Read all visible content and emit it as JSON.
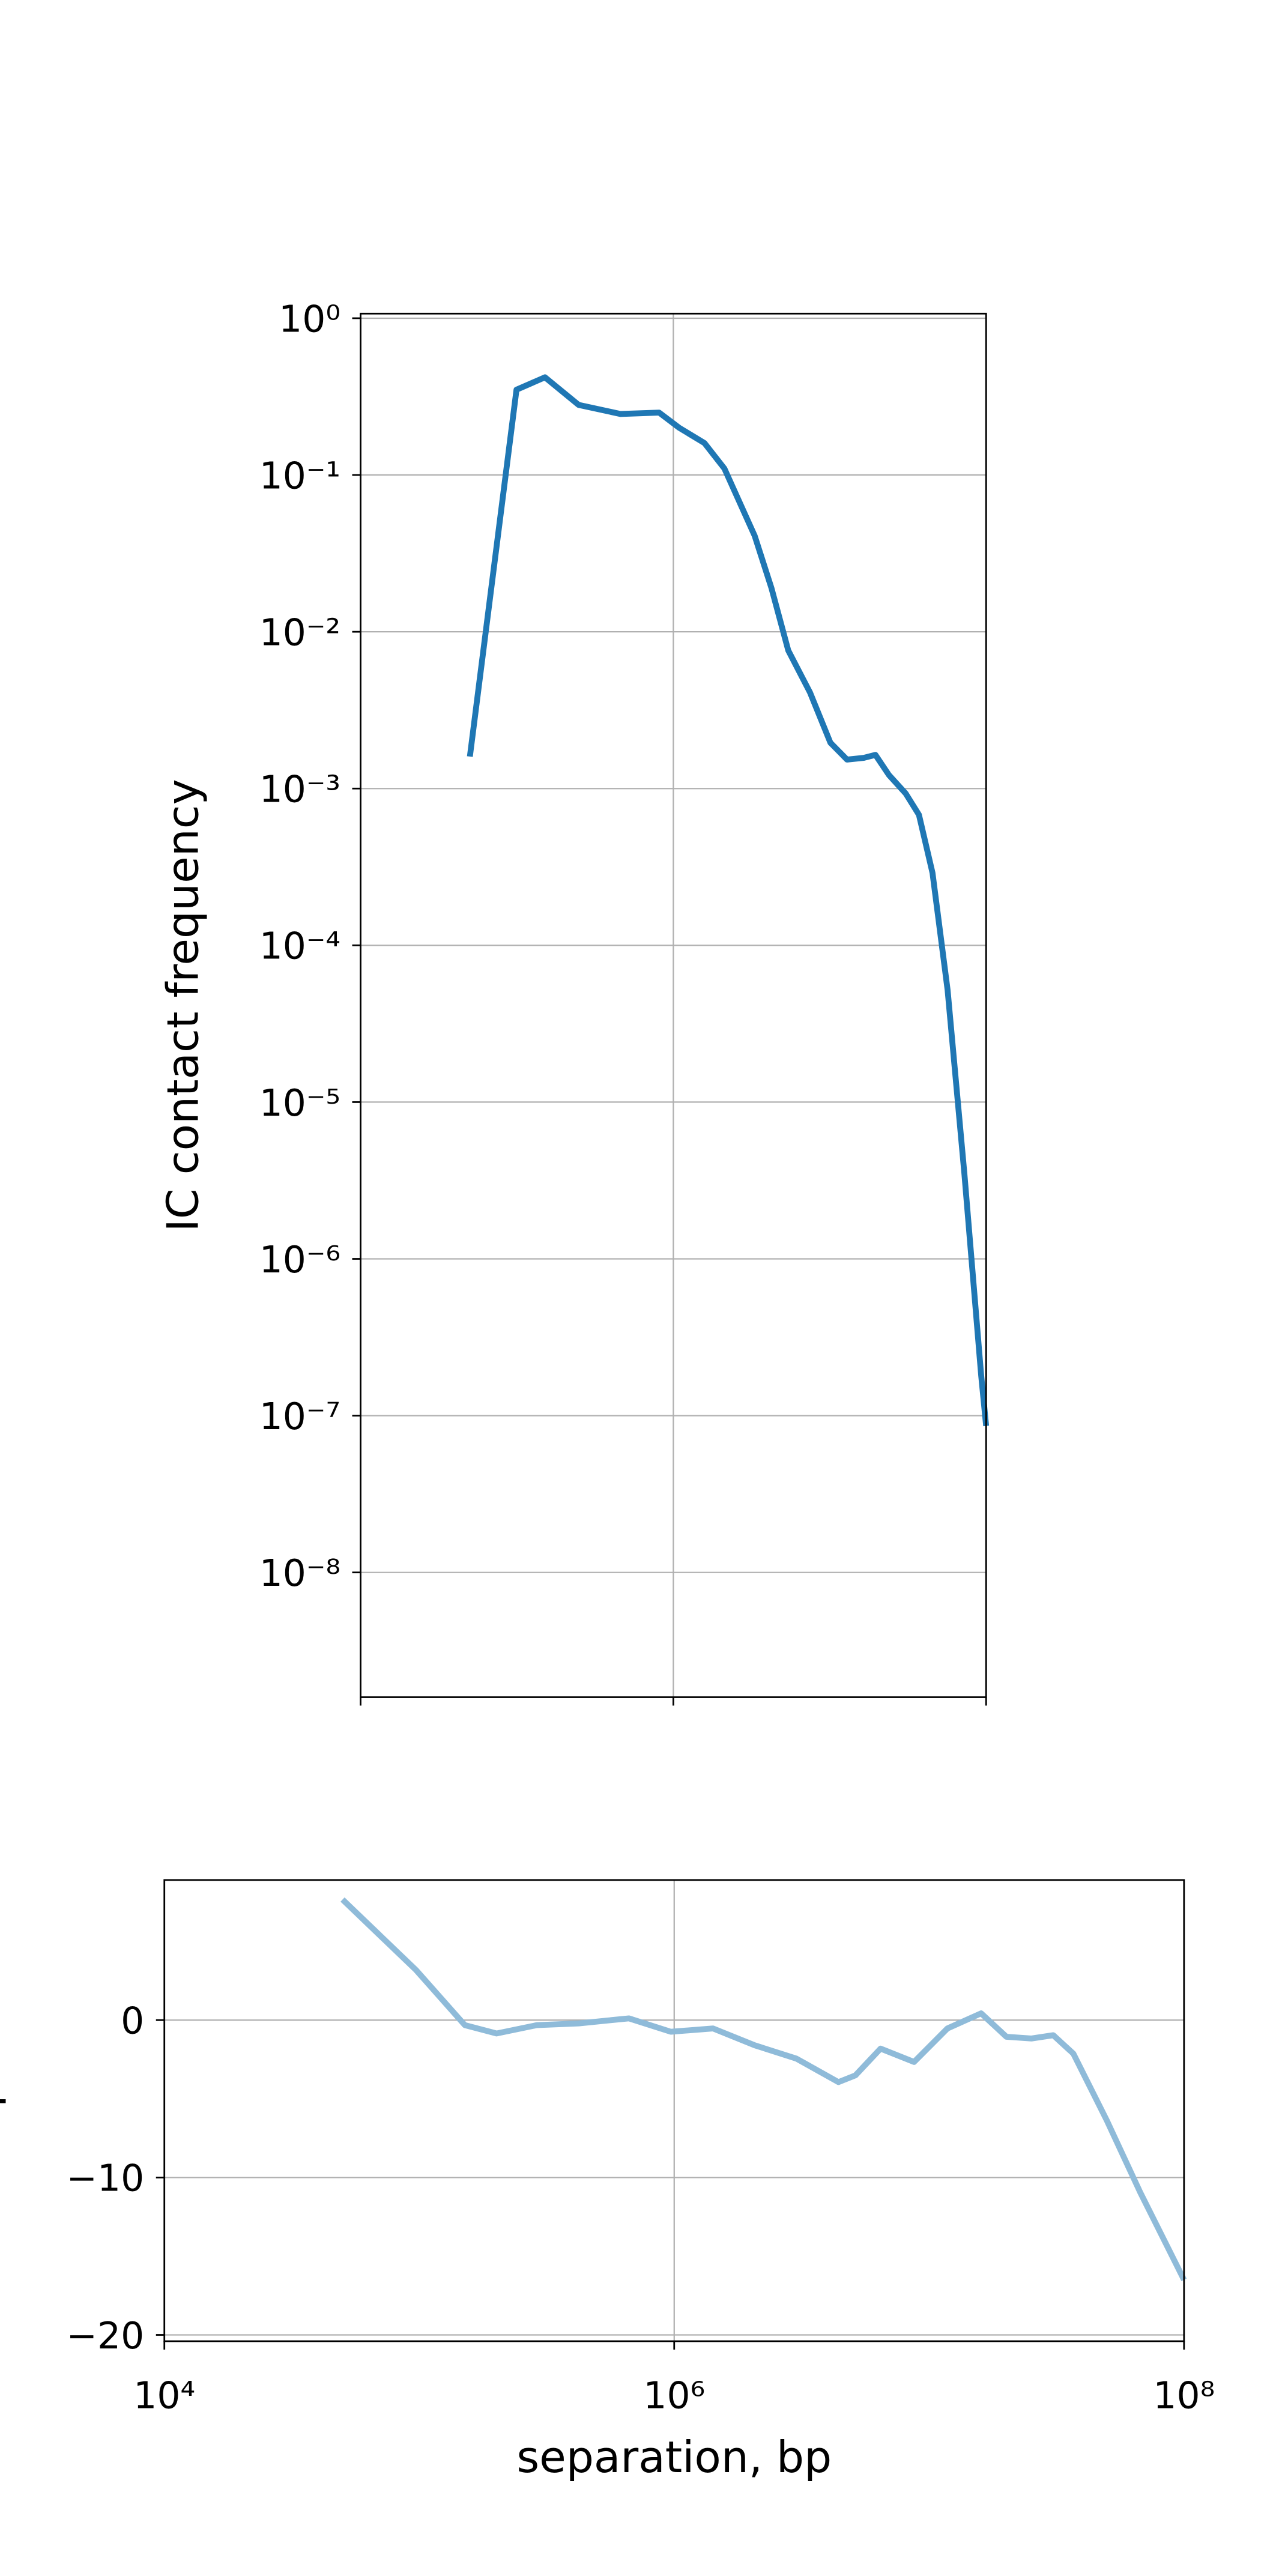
{
  "chart_data": [
    {
      "type": "line",
      "ylabel": "IC contact frequency",
      "xscale": "log",
      "yscale": "log",
      "grid": true,
      "xlim": [
        10000,
        100000000
      ],
      "xticks": [
        10000,
        1000000,
        100000000
      ],
      "ylim": [
        1.6e-09,
        1.07
      ],
      "yticks": [
        {
          "value": 1,
          "label": "10⁰"
        },
        {
          "value": 0.1,
          "label": "10⁻¹"
        },
        {
          "value": 0.01,
          "label": "10⁻²"
        },
        {
          "value": 0.001,
          "label": "10⁻³"
        },
        {
          "value": 0.0001,
          "label": "10⁻⁴"
        },
        {
          "value": 1e-05,
          "label": "10⁻⁵"
        },
        {
          "value": 1e-06,
          "label": "10⁻⁶"
        },
        {
          "value": 1e-07,
          "label": "10⁻⁷"
        },
        {
          "value": 1e-08,
          "label": "10⁻⁸"
        }
      ],
      "x": [
        50000,
        99300,
        151000,
        248000,
        459000,
        811000,
        1090000,
        1580000,
        2120000,
        3310000,
        4240000,
        5430000,
        7480000,
        10100000,
        12900000,
        16500000,
        19600000,
        23900000,
        30600000,
        37200000,
        45400000,
        56700000,
        72600000,
        93000000,
        100000000
      ],
      "series": [
        {
          "color": "#1f77b4",
          "values": [
            0.0016,
            0.35,
            0.42,
            0.28,
            0.245,
            0.25,
            0.2,
            0.16,
            0.11,
            0.041,
            0.019,
            0.0076,
            0.0041,
            0.00196,
            0.00153,
            0.00157,
            0.00164,
            0.00122,
            0.00093,
            0.00068,
            0.00029,
            5.2e-05,
            3.5e-06,
            1.8e-07,
            8.6e-08
          ]
        }
      ]
    },
    {
      "type": "line",
      "xlabel": "separation, bp",
      "ylabel": "slope",
      "xscale": "log",
      "grid": true,
      "xlim": [
        10000,
        100000000
      ],
      "xticks": [
        {
          "value": 10000,
          "label": "10⁴"
        },
        {
          "value": 1000000,
          "label": "10⁶"
        },
        {
          "value": 100000000,
          "label": "10⁸"
        }
      ],
      "ylim": [
        -20.4,
        8.9
      ],
      "yticks": [
        0,
        {
          "value": -10,
          "label": "−10"
        },
        {
          "value": -20,
          "label": "−20"
        }
      ],
      "x": [
        50000,
        97000,
        151000,
        201000,
        289000,
        422000,
        664000,
        970000,
        1420000,
        2070000,
        3020000,
        4410000,
        5140000,
        6450000,
        8730000,
        11800000,
        16000000,
        20100000,
        25200000,
        30700000,
        36800000,
        49800000,
        67400000,
        100000000
      ],
      "series": [
        {
          "color": "#8fbbd9",
          "values": [
            7.66,
            3.19,
            -0.32,
            -0.85,
            -0.32,
            -0.21,
            0.11,
            -0.74,
            -0.53,
            -1.6,
            -2.45,
            -3.94,
            -3.51,
            -1.81,
            -2.66,
            -0.53,
            0.43,
            -1.06,
            -1.17,
            -0.96,
            -2.13,
            -6.38,
            -10.96,
            -16.5
          ]
        }
      ]
    }
  ]
}
